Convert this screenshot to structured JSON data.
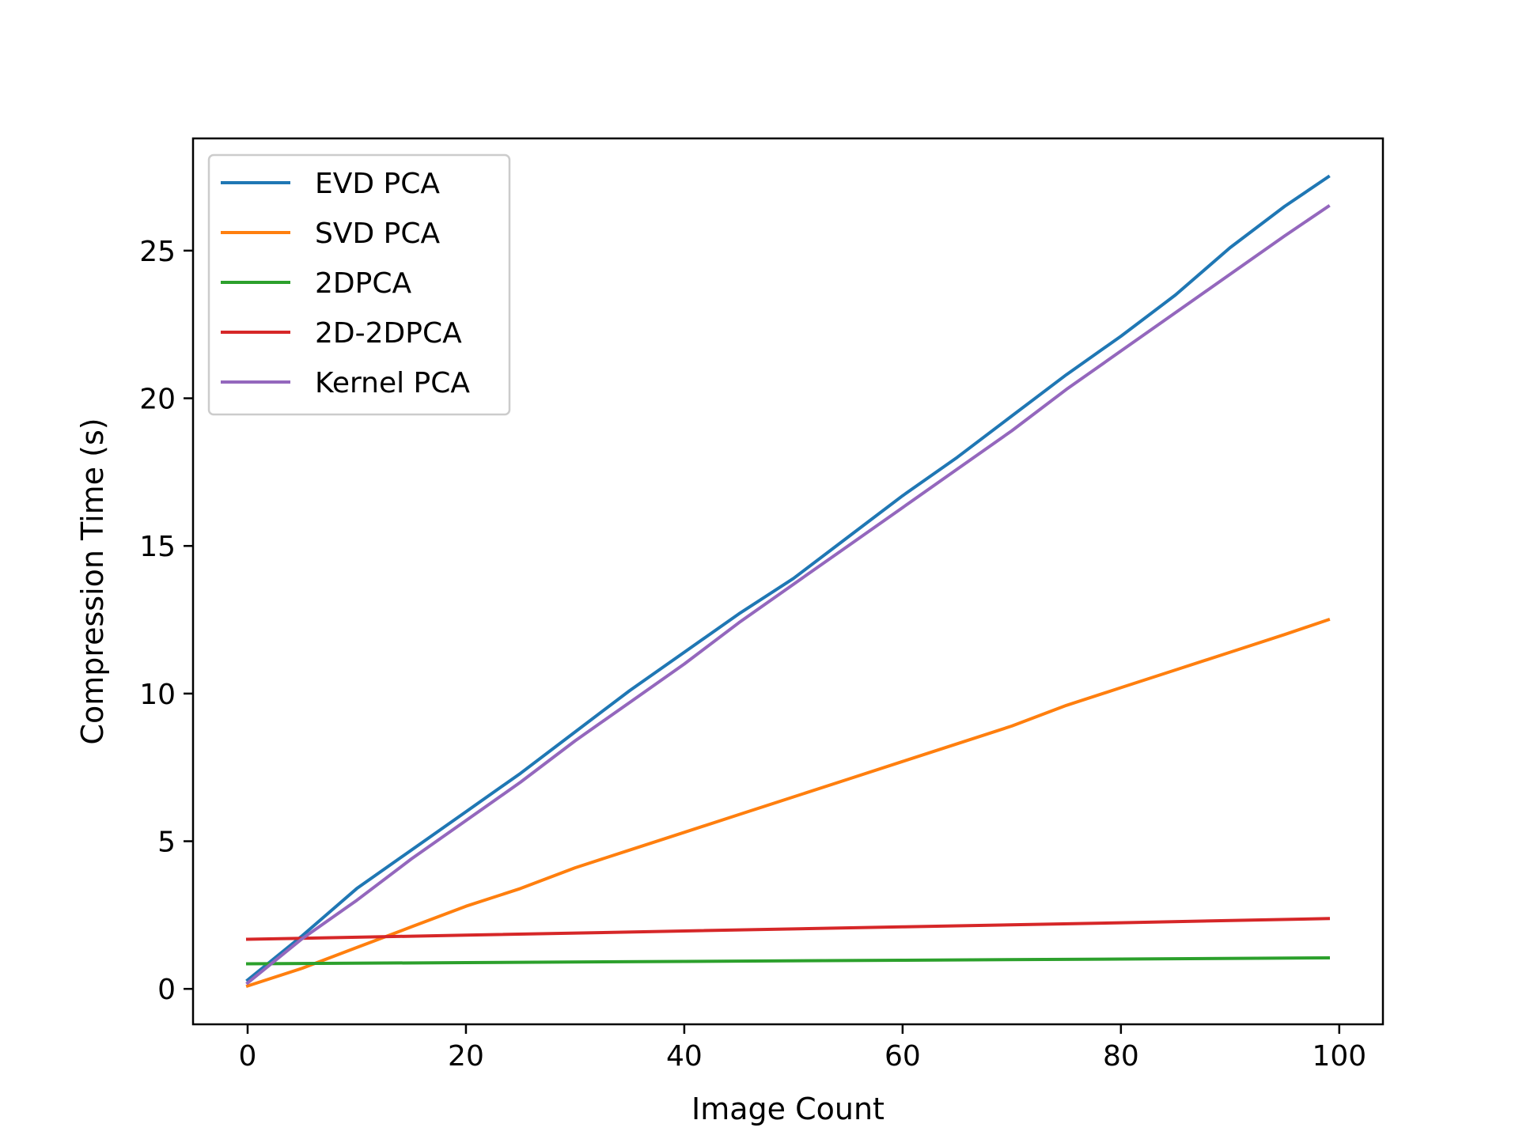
{
  "chart_data": {
    "type": "line",
    "title": "",
    "xlabel": "Image Count",
    "ylabel": "Compression Time (s)",
    "xlim": [
      -5,
      104
    ],
    "ylim": [
      -1.2,
      28.8
    ],
    "xticks": [
      0,
      20,
      40,
      60,
      80,
      100
    ],
    "yticks": [
      0,
      5,
      10,
      15,
      20,
      25
    ],
    "grid": false,
    "legend_position": "top-left",
    "series": [
      {
        "name": "EVD PCA",
        "color": "#1f77b4",
        "x": [
          0,
          5,
          10,
          15,
          20,
          25,
          30,
          35,
          40,
          45,
          50,
          55,
          60,
          65,
          70,
          75,
          80,
          85,
          90,
          95,
          99
        ],
        "y": [
          0.3,
          1.8,
          3.4,
          4.7,
          6.0,
          7.3,
          8.7,
          10.1,
          11.4,
          12.7,
          13.9,
          15.3,
          16.7,
          18.0,
          19.4,
          20.8,
          22.1,
          23.5,
          25.1,
          26.5,
          27.5
        ]
      },
      {
        "name": "SVD PCA",
        "color": "#ff7f0e",
        "x": [
          0,
          5,
          10,
          15,
          20,
          25,
          30,
          35,
          40,
          45,
          50,
          55,
          60,
          65,
          70,
          75,
          80,
          85,
          90,
          95,
          99
        ],
        "y": [
          0.1,
          0.7,
          1.4,
          2.1,
          2.8,
          3.4,
          4.1,
          4.7,
          5.3,
          5.9,
          6.5,
          7.1,
          7.7,
          8.3,
          8.9,
          9.6,
          10.2,
          10.8,
          11.4,
          12.0,
          12.5
        ]
      },
      {
        "name": "2DPCA",
        "color": "#2ca02c",
        "x": [
          0,
          20,
          40,
          60,
          80,
          99
        ],
        "y": [
          0.85,
          0.89,
          0.93,
          0.97,
          1.01,
          1.05
        ]
      },
      {
        "name": "2D-2DPCA",
        "color": "#d62728",
        "x": [
          0,
          20,
          40,
          60,
          80,
          99
        ],
        "y": [
          1.68,
          1.82,
          1.96,
          2.1,
          2.24,
          2.38
        ]
      },
      {
        "name": "Kernel PCA",
        "color": "#9467bd",
        "x": [
          0,
          5,
          10,
          15,
          20,
          25,
          30,
          35,
          40,
          45,
          50,
          55,
          60,
          65,
          70,
          75,
          80,
          85,
          90,
          95,
          99
        ],
        "y": [
          0.2,
          1.7,
          3.0,
          4.4,
          5.7,
          7.0,
          8.4,
          9.7,
          11.0,
          12.4,
          13.7,
          15.0,
          16.3,
          17.6,
          18.9,
          20.3,
          21.6,
          22.9,
          24.2,
          25.5,
          26.5
        ]
      }
    ]
  }
}
